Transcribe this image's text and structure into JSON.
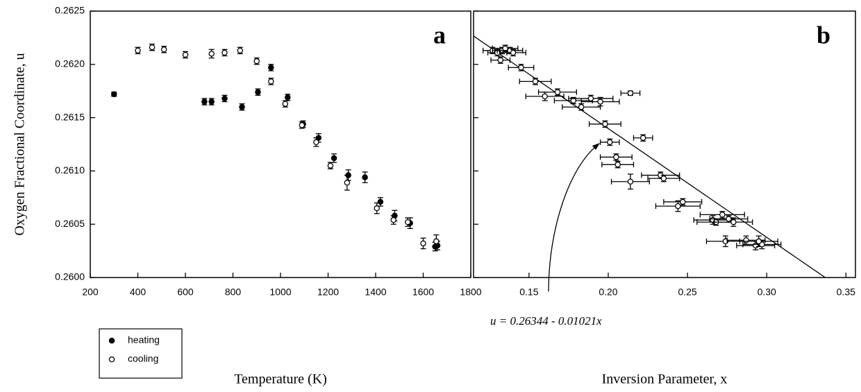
{
  "chart_data": [
    {
      "type": "scatter",
      "panel_label": "a",
      "xlabel": "Temperature (K)",
      "ylabel": "Oxygen Fractional Coordinate, u",
      "xlim": [
        200,
        1800
      ],
      "xticks": [
        200,
        400,
        600,
        800,
        1000,
        1200,
        1400,
        1600,
        1800
      ],
      "ylim": [
        0.26,
        0.2625
      ],
      "yticks": [
        {
          "value": 0.26,
          "label": "0.2600"
        },
        {
          "value": 0.2605,
          "label": "0.2605"
        },
        {
          "value": 0.261,
          "label": "0.2610"
        },
        {
          "value": 0.2615,
          "label": "0.2615"
        },
        {
          "value": 0.262,
          "label": "0.2620"
        },
        {
          "value": 0.2625,
          "label": "0.2625"
        }
      ],
      "legend": "lower left",
      "series": [
        {
          "name": "heating",
          "color": "#000000",
          "x": [
            300,
            680,
            710,
            765,
            838,
            905,
            960,
            1030,
            1095,
            1160,
            1225,
            1285,
            1355,
            1420,
            1480,
            1545,
            1650,
            1660
          ],
          "values": [
            0.26172,
            0.26165,
            0.26165,
            0.26168,
            0.2616,
            0.26174,
            0.26197,
            0.26169,
            0.26144,
            0.26131,
            0.26112,
            0.26096,
            0.26094,
            0.26071,
            0.26058,
            0.26051,
            0.26029,
            0.2603
          ],
          "yerr": [
            2e-05,
            3e-05,
            3e-05,
            3e-05,
            3e-05,
            3e-05,
            3e-05,
            3e-05,
            3e-05,
            4e-05,
            4e-05,
            5e-05,
            5e-05,
            4e-05,
            5e-05,
            5e-05,
            4e-05,
            4e-05
          ]
        },
        {
          "name": "cooling",
          "color": "#ffffff",
          "x": [
            400,
            460,
            510,
            600,
            710,
            765,
            830,
            900,
            960,
            1020,
            1090,
            1150,
            1210,
            1280,
            1405,
            1475,
            1535,
            1600,
            1655
          ],
          "values": [
            0.26213,
            0.26216,
            0.26214,
            0.26209,
            0.2621,
            0.26211,
            0.26213,
            0.26203,
            0.26184,
            0.26163,
            0.26143,
            0.26127,
            0.26105,
            0.26089,
            0.26065,
            0.26054,
            0.26052,
            0.26032,
            0.26034
          ],
          "yerr": [
            3e-05,
            3e-05,
            3e-05,
            3e-05,
            4e-05,
            3e-05,
            3e-05,
            3e-05,
            3e-05,
            3e-05,
            3e-05,
            4e-05,
            3e-05,
            7e-05,
            5e-05,
            4e-05,
            4e-05,
            5e-05,
            6e-05
          ]
        }
      ]
    },
    {
      "type": "scatter",
      "panel_label": "b",
      "xlabel": "Inversion Parameter, x",
      "xlim": [
        0.115,
        0.356
      ],
      "xticks": [
        0.15,
        {
          "value": 0.2,
          "label": "0.20"
        },
        0.25,
        {
          "value": 0.3,
          "label": "0.30"
        },
        0.35
      ],
      "ylim": [
        0.26,
        0.2625
      ],
      "yticks": [
        0.26,
        0.2605,
        0.261,
        0.2615,
        0.262,
        0.2625
      ],
      "fit": {
        "intercept": 0.26344,
        "slope": -0.01021
      },
      "annotation": "u = 0.26344 - 0.01021x",
      "series": [
        {
          "color": "#ffffff",
          "x": [
            0.127,
            0.13,
            0.133,
            0.135,
            0.138,
            0.14,
            0.132,
            0.145,
            0.154,
            0.16,
            0.168,
            0.178,
            0.183,
            0.189,
            0.195,
            0.214,
            0.198,
            0.201,
            0.222,
            0.205,
            0.206,
            0.214,
            0.233,
            0.235,
            0.244,
            0.247,
            0.266,
            0.272,
            0.268,
            0.279,
            0.276,
            0.274,
            0.287,
            0.293,
            0.297,
            0.295
          ],
          "values": [
            0.26213,
            0.26211,
            0.26213,
            0.26215,
            0.26213,
            0.26211,
            0.26204,
            0.26197,
            0.26184,
            0.2617,
            0.26174,
            0.26166,
            0.2616,
            0.26168,
            0.26165,
            0.26173,
            0.26144,
            0.26127,
            0.26131,
            0.26113,
            0.26106,
            0.2609,
            0.26096,
            0.26093,
            0.26067,
            0.26071,
            0.26054,
            0.26059,
            0.26052,
            0.26052,
            0.26055,
            0.26034,
            0.26035,
            0.2603,
            0.26031,
            0.26034
          ],
          "xerr": [
            0.006,
            0.006,
            0.006,
            0.008,
            0.008,
            0.008,
            0.006,
            0.008,
            0.01,
            0.012,
            0.012,
            0.012,
            0.012,
            0.014,
            0.012,
            0.006,
            0.01,
            0.006,
            0.006,
            0.01,
            0.01,
            0.012,
            0.012,
            0.01,
            0.014,
            0.012,
            0.012,
            0.014,
            0.012,
            0.012,
            0.012,
            0.012,
            0.012,
            0.012,
            0.012,
            0.012
          ],
          "yerr": [
            3e-05,
            3e-05,
            3e-05,
            3e-05,
            3e-05,
            3e-05,
            3e-05,
            3e-05,
            3e-05,
            4e-05,
            3e-05,
            3e-05,
            3e-05,
            3e-05,
            4e-05,
            2e-05,
            3e-05,
            3e-05,
            3e-05,
            3e-05,
            3e-05,
            7e-05,
            3e-05,
            3e-05,
            5e-05,
            3e-05,
            4e-05,
            3e-05,
            3e-05,
            4e-05,
            3e-05,
            5e-05,
            4e-05,
            4e-05,
            4e-05,
            5e-05
          ]
        }
      ]
    }
  ]
}
